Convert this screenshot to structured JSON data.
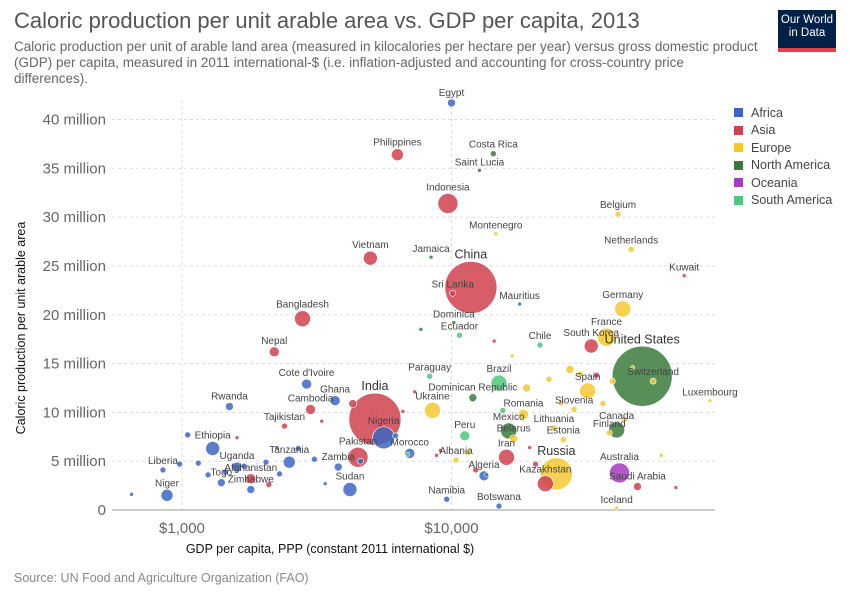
{
  "header": {
    "title": "Caloric production per unit arable area vs. GDP per capita, 2013",
    "subtitle": "Caloric production per unit of arable land area (measured in kilocalories per hectare per year) versus gross domestic product (GDP) per capita, measured in 2011 international-$ (i.e. inflation-adjusted and accounting for cross-country price differences).",
    "logo_line1": "Our World",
    "logo_line2": "in Data"
  },
  "footer": {
    "source": "Source: UN Food and Agriculture Organization (FAO)"
  },
  "colors": {
    "Africa": "#3d66c4",
    "Asia": "#d0414f",
    "Europe": "#f5c830",
    "North America": "#3b7a3b",
    "Oceania": "#a33cbf",
    "South America": "#4fc77a"
  },
  "legend": [
    "Africa",
    "Asia",
    "Europe",
    "North America",
    "Oceania",
    "South America"
  ],
  "chart_data": {
    "type": "scatter",
    "xlabel": "GDP per capita, PPP (constant 2011 international $)",
    "ylabel": "Caloric production per unit arable area",
    "x_scale": "log",
    "xlim": [
      550,
      95000
    ],
    "ylim": [
      0,
      42000000
    ],
    "x_ticks": [
      {
        "value": 1000,
        "label": "$1,000"
      },
      {
        "value": 10000,
        "label": "$10,000"
      }
    ],
    "y_ticks": [
      {
        "value": 0,
        "label": "0"
      },
      {
        "value": 5000000,
        "label": "5 million"
      },
      {
        "value": 10000000,
        "label": "10 million"
      },
      {
        "value": 15000000,
        "label": "15 million"
      },
      {
        "value": 20000000,
        "label": "20 million"
      },
      {
        "value": 25000000,
        "label": "25 million"
      },
      {
        "value": 30000000,
        "label": "30 million"
      },
      {
        "value": 35000000,
        "label": "35 million"
      },
      {
        "value": 40000000,
        "label": "40 million"
      }
    ],
    "grid": true,
    "legend_position": "right",
    "points": [
      {
        "label": "Egypt",
        "x": 10000,
        "y": 41700000,
        "region": "Africa",
        "size": 4
      },
      {
        "label": "Philippines",
        "x": 6300,
        "y": 36400000,
        "region": "Asia",
        "size": 6
      },
      {
        "label": "Costa Rica",
        "x": 14300,
        "y": 36500000,
        "region": "North America",
        "size": 3
      },
      {
        "label": "Saint Lucia",
        "x": 12700,
        "y": 34800000,
        "region": "North America",
        "size": 2
      },
      {
        "label": "Indonesia",
        "x": 9700,
        "y": 31400000,
        "region": "Asia",
        "size": 10
      },
      {
        "label": "Belgium",
        "x": 41500,
        "y": 30300000,
        "region": "Europe",
        "size": 3
      },
      {
        "label": "Montenegro",
        "x": 14600,
        "y": 28300000,
        "region": "Europe",
        "size": 2
      },
      {
        "label": "Netherlands",
        "x": 46400,
        "y": 26700000,
        "region": "Europe",
        "size": 3
      },
      {
        "label": "Vietnam",
        "x": 5000,
        "y": 25800000,
        "region": "Asia",
        "size": 7
      },
      {
        "label": "Jamaica",
        "x": 8400,
        "y": 25900000,
        "region": "North America",
        "size": 2
      },
      {
        "label": "Kuwait",
        "x": 73000,
        "y": 24000000,
        "region": "Asia",
        "size": 2
      },
      {
        "label": "China",
        "x": 11800,
        "y": 22800000,
        "region": "Asia",
        "size": 26
      },
      {
        "label": "Sri Lanka",
        "x": 10100,
        "y": 22200000,
        "region": "Asia",
        "size": 3
      },
      {
        "label": "Mauritius",
        "x": 17900,
        "y": 21100000,
        "region": "Africa",
        "size": 2
      },
      {
        "label": "Germany",
        "x": 43200,
        "y": 20600000,
        "region": "Europe",
        "size": 8
      },
      {
        "label": "Bangladesh",
        "x": 2800,
        "y": 19600000,
        "region": "Asia",
        "size": 8
      },
      {
        "label": "Dominica",
        "x": 10200,
        "y": 19200000,
        "region": "North America",
        "size": 2
      },
      {
        "label": "Ecuador",
        "x": 10700,
        "y": 17900000,
        "region": "South America",
        "size": 3
      },
      {
        "label": "France",
        "x": 37600,
        "y": 17700000,
        "region": "Europe",
        "size": 9
      },
      {
        "label": "Chile",
        "x": 21300,
        "y": 16900000,
        "region": "South America",
        "size": 3
      },
      {
        "label": "South Korea",
        "x": 33000,
        "y": 16800000,
        "region": "Asia",
        "size": 7
      },
      {
        "label": "Nepal",
        "x": 2200,
        "y": 16200000,
        "region": "Asia",
        "size": 5
      },
      {
        "label": "United States",
        "x": 51000,
        "y": 13700000,
        "region": "North America",
        "size": 30
      },
      {
        "label": "Paraguay",
        "x": 8300,
        "y": 13700000,
        "region": "South America",
        "size": 3
      },
      {
        "label": "Cote d'Ivoire",
        "x": 2900,
        "y": 12900000,
        "region": "Africa",
        "size": 5
      },
      {
        "label": "Brazil",
        "x": 15000,
        "y": 13000000,
        "region": "South America",
        "size": 8
      },
      {
        "label": "Switzerland",
        "x": 56000,
        "y": 13200000,
        "region": "Europe",
        "size": 3
      },
      {
        "label": "Spain",
        "x": 32000,
        "y": 12200000,
        "region": "Europe",
        "size": 8
      },
      {
        "label": "Dominican Republic",
        "x": 12000,
        "y": 11500000,
        "region": "North America",
        "size": 4
      },
      {
        "label": "Luxembourg",
        "x": 91000,
        "y": 11200000,
        "region": "Europe",
        "size": 2
      },
      {
        "label": "Ghana",
        "x": 3700,
        "y": 11200000,
        "region": "Africa",
        "size": 5
      },
      {
        "label": "Rwanda",
        "x": 1500,
        "y": 10600000,
        "region": "Africa",
        "size": 4
      },
      {
        "label": "Cambodia",
        "x": 3000,
        "y": 10300000,
        "region": "Asia",
        "size": 5
      },
      {
        "label": "Ukraine",
        "x": 8500,
        "y": 10200000,
        "region": "Europe",
        "size": 8
      },
      {
        "label": "Slovenia",
        "x": 28500,
        "y": 10300000,
        "region": "Europe",
        "size": 3
      },
      {
        "label": "Romania",
        "x": 18500,
        "y": 9800000,
        "region": "Europe",
        "size": 5
      },
      {
        "label": "India",
        "x": 5200,
        "y": 9300000,
        "region": "Asia",
        "size": 26
      },
      {
        "label": "Tajikistan",
        "x": 2400,
        "y": 8600000,
        "region": "Asia",
        "size": 3
      },
      {
        "label": "Canada",
        "x": 41000,
        "y": 8200000,
        "region": "North America",
        "size": 8
      },
      {
        "label": "Lithuania",
        "x": 24000,
        "y": 8400000,
        "region": "Europe",
        "size": 3
      },
      {
        "label": "Mexico",
        "x": 16300,
        "y": 8100000,
        "region": "North America",
        "size": 8
      },
      {
        "label": "Finland",
        "x": 38500,
        "y": 7900000,
        "region": "Europe",
        "size": 3
      },
      {
        "label": "Peru",
        "x": 11200,
        "y": 7600000,
        "region": "South America",
        "size": 5
      },
      {
        "label": "Belarus",
        "x": 17000,
        "y": 7300000,
        "region": "Europe",
        "size": 4
      },
      {
        "label": "Estonia",
        "x": 26000,
        "y": 7200000,
        "region": "Europe",
        "size": 3
      },
      {
        "label": "Nigeria",
        "x": 5600,
        "y": 7400000,
        "region": "Africa",
        "size": 11
      },
      {
        "label": "Ethiopia",
        "x": 1300,
        "y": 6300000,
        "region": "Africa",
        "size": 7
      },
      {
        "label": "Iran",
        "x": 16000,
        "y": 5400000,
        "region": "Asia",
        "size": 8
      },
      {
        "label": "Pakistan",
        "x": 4500,
        "y": 5400000,
        "region": "Asia",
        "size": 10
      },
      {
        "label": "Morocco",
        "x": 7000,
        "y": 5800000,
        "region": "Africa",
        "size": 5
      },
      {
        "label": "Albania",
        "x": 10400,
        "y": 5100000,
        "region": "Europe",
        "size": 3
      },
      {
        "label": "Uganda",
        "x": 1600,
        "y": 4400000,
        "region": "Africa",
        "size": 5
      },
      {
        "label": "Tanzania",
        "x": 2500,
        "y": 4900000,
        "region": "Africa",
        "size": 6
      },
      {
        "label": "Zambia",
        "x": 3800,
        "y": 4400000,
        "region": "Africa",
        "size": 4
      },
      {
        "label": "Australia",
        "x": 42000,
        "y": 3800000,
        "region": "Oceania",
        "size": 10
      },
      {
        "label": "Algeria",
        "x": 13200,
        "y": 3500000,
        "region": "Africa",
        "size": 5
      },
      {
        "label": "Russia",
        "x": 24500,
        "y": 3700000,
        "region": "Europe",
        "size": 16
      },
      {
        "label": "Kazakhstan",
        "x": 22300,
        "y": 2700000,
        "region": "Asia",
        "size": 8
      },
      {
        "label": "Liberia",
        "x": 850,
        "y": 4100000,
        "region": "Africa",
        "size": 3
      },
      {
        "label": "Afghanistan",
        "x": 1800,
        "y": 3200000,
        "region": "Asia",
        "size": 5
      },
      {
        "label": "Togo",
        "x": 1400,
        "y": 2800000,
        "region": "Africa",
        "size": 4
      },
      {
        "label": "Zimbabwe",
        "x": 1800,
        "y": 2100000,
        "region": "Africa",
        "size": 4
      },
      {
        "label": "Saudi Arabia",
        "x": 49000,
        "y": 2400000,
        "region": "Asia",
        "size": 4
      },
      {
        "label": "Sudan",
        "x": 4200,
        "y": 2100000,
        "region": "Africa",
        "size": 7
      },
      {
        "label": "Niger",
        "x": 880,
        "y": 1500000,
        "region": "Africa",
        "size": 6
      },
      {
        "label": "Namibia",
        "x": 9600,
        "y": 1100000,
        "region": "Africa",
        "size": 3
      },
      {
        "label": "Botswana",
        "x": 15000,
        "y": 400000,
        "region": "Africa",
        "size": 3
      },
      {
        "label": "Iceland",
        "x": 41000,
        "y": 200000,
        "region": "Europe",
        "size": 2
      },
      {
        "label": "",
        "x": 1050,
        "y": 7700000,
        "region": "Africa",
        "size": 3
      },
      {
        "label": "",
        "x": 1150,
        "y": 4800000,
        "region": "Africa",
        "size": 3
      },
      {
        "label": "",
        "x": 1250,
        "y": 3600000,
        "region": "Africa",
        "size": 3
      },
      {
        "label": "",
        "x": 1450,
        "y": 3900000,
        "region": "Africa",
        "size": 3
      },
      {
        "label": "",
        "x": 1700,
        "y": 4500000,
        "region": "Africa",
        "size": 3
      },
      {
        "label": "",
        "x": 2050,
        "y": 4900000,
        "region": "Africa",
        "size": 3
      },
      {
        "label": "",
        "x": 2300,
        "y": 3700000,
        "region": "Africa",
        "size": 3
      },
      {
        "label": "",
        "x": 2100,
        "y": 2600000,
        "region": "Asia",
        "size": 3
      },
      {
        "label": "",
        "x": 2700,
        "y": 6300000,
        "region": "Africa",
        "size": 3
      },
      {
        "label": "",
        "x": 3100,
        "y": 5200000,
        "region": "Africa",
        "size": 3
      },
      {
        "label": "",
        "x": 3400,
        "y": 2700000,
        "region": "Africa",
        "size": 2
      },
      {
        "label": "",
        "x": 650,
        "y": 1600000,
        "region": "Africa",
        "size": 2
      },
      {
        "label": "",
        "x": 980,
        "y": 4700000,
        "region": "Africa",
        "size": 3
      },
      {
        "label": "",
        "x": 1600,
        "y": 7400000,
        "region": "Asia",
        "size": 2
      },
      {
        "label": "",
        "x": 2250,
        "y": 6400000,
        "region": "Africa",
        "size": 2
      },
      {
        "label": "",
        "x": 3300,
        "y": 9100000,
        "region": "Asia",
        "size": 2
      },
      {
        "label": "",
        "x": 4300,
        "y": 10900000,
        "region": "Asia",
        "size": 4
      },
      {
        "label": "",
        "x": 4600,
        "y": 5000000,
        "region": "Africa",
        "size": 3
      },
      {
        "label": "",
        "x": 6200,
        "y": 7600000,
        "region": "Africa",
        "size": 3
      },
      {
        "label": "",
        "x": 6600,
        "y": 10100000,
        "region": "Asia",
        "size": 2
      },
      {
        "label": "",
        "x": 7300,
        "y": 12100000,
        "region": "Asia",
        "size": 2
      },
      {
        "label": "",
        "x": 7700,
        "y": 18500000,
        "region": "North America",
        "size": 2
      },
      {
        "label": "",
        "x": 8800,
        "y": 5600000,
        "region": "Asia",
        "size": 2
      },
      {
        "label": "",
        "x": 9100,
        "y": 6100000,
        "region": "Asia",
        "size": 2
      },
      {
        "label": "",
        "x": 11500,
        "y": 5900000,
        "region": "Europe",
        "size": 3
      },
      {
        "label": "",
        "x": 12300,
        "y": 4100000,
        "region": "Asia",
        "size": 3
      },
      {
        "label": "",
        "x": 13500,
        "y": 3600000,
        "region": "Africa",
        "size": 2
      },
      {
        "label": "",
        "x": 14400,
        "y": 17300000,
        "region": "Asia",
        "size": 2
      },
      {
        "label": "",
        "x": 16800,
        "y": 15800000,
        "region": "Europe",
        "size": 2
      },
      {
        "label": "",
        "x": 19000,
        "y": 12500000,
        "region": "Europe",
        "size": 4
      },
      {
        "label": "",
        "x": 20500,
        "y": 4700000,
        "region": "Asia",
        "size": 3
      },
      {
        "label": "",
        "x": 23000,
        "y": 13400000,
        "region": "Europe",
        "size": 3
      },
      {
        "label": "",
        "x": 25500,
        "y": 11000000,
        "region": "Europe",
        "size": 3
      },
      {
        "label": "",
        "x": 27500,
        "y": 14400000,
        "region": "Europe",
        "size": 4
      },
      {
        "label": "",
        "x": 30000,
        "y": 13900000,
        "region": "Europe",
        "size": 3
      },
      {
        "label": "",
        "x": 34500,
        "y": 13800000,
        "region": "Asia",
        "size": 3
      },
      {
        "label": "",
        "x": 36500,
        "y": 10900000,
        "region": "Europe",
        "size": 3
      },
      {
        "label": "",
        "x": 39500,
        "y": 13200000,
        "region": "Europe",
        "size": 3
      },
      {
        "label": "",
        "x": 44000,
        "y": 9300000,
        "region": "Europe",
        "size": 3
      },
      {
        "label": "",
        "x": 47000,
        "y": 14600000,
        "region": "Europe",
        "size": 2
      },
      {
        "label": "",
        "x": 60000,
        "y": 5600000,
        "region": "Europe",
        "size": 2
      },
      {
        "label": "",
        "x": 68000,
        "y": 2300000,
        "region": "Asia",
        "size": 2
      },
      {
        "label": "",
        "x": 19500,
        "y": 6400000,
        "region": "Asia",
        "size": 2
      },
      {
        "label": "",
        "x": 15500,
        "y": 10200000,
        "region": "South America",
        "size": 3
      },
      {
        "label": "",
        "x": 6900,
        "y": 5700000,
        "region": "South America",
        "size": 2
      }
    ]
  }
}
